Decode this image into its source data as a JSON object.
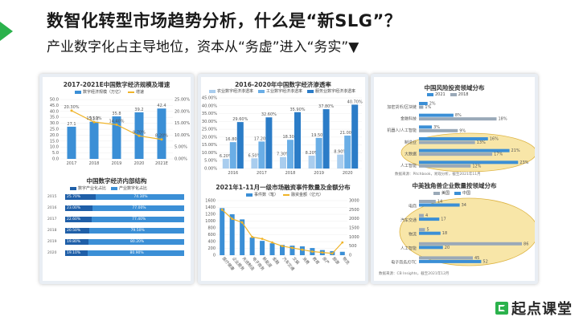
{
  "header": {
    "title": "数智化转型市场趋势分析，什么是“新SLG”？",
    "subtitle": "产业数字化占主导地位，资本从“务虚”进入“务实”▼"
  },
  "brand": {
    "logo_text": "起点课堂"
  },
  "colors": {
    "accent_green": "#2bb24c",
    "bar_blue": "#3b8fd6",
    "bar_light": "#a9cdee",
    "line_gold": "#f0b429",
    "bar_grey": "#9aa9b8",
    "dark_blue": "#1f5fa8",
    "ellipse_fill": "#f7e29a"
  },
  "chart_data": [
    {
      "type": "bar",
      "title": "2017-2021E中国数字经济规模及增速",
      "legend": [
        "数字经济规模（万亿）",
        "增速"
      ],
      "categories": [
        "2017",
        "2018",
        "2019",
        "2020",
        "2021E"
      ],
      "series": [
        {
          "name": "数字经济规模（万亿）",
          "values": [
            27.1,
            31.3,
            35.8,
            39.2,
            42.4
          ]
        },
        {
          "name": "增速",
          "values": [
            20.3,
            15.5,
            14.4,
            9.7,
            8.2
          ]
        }
      ],
      "labels": {
        "bars": [
          "27.1",
          "31.3",
          "35.8",
          "39.2",
          "42.4"
        ],
        "line": [
          "20.30%",
          "15.50%",
          "14.40%",
          "9.70%",
          "8.20%"
        ]
      },
      "ylim": [
        0,
        50
      ],
      "yticks": [
        "0.0",
        "5.0",
        "10.0",
        "15.0",
        "20.0",
        "25.0",
        "30.0",
        "35.0",
        "40.0",
        "45.0",
        "50.0"
      ],
      "y2ticks": [
        "0.00%",
        "5.00%",
        "10.00%",
        "15.00%",
        "20.00%",
        "25.00%"
      ]
    },
    {
      "type": "table",
      "title": "中国数字经济内部结构",
      "legend": [
        "数字产业化占比",
        "产业数字化占比"
      ],
      "rows": [
        {
          "year": "2015",
          "a": "25.70%",
          "b": "74.30%"
        },
        {
          "year": "2016",
          "a": "23.00%",
          "b": "77.00%"
        },
        {
          "year": "2017",
          "a": "22.60%",
          "b": "77.40%"
        },
        {
          "year": "2018",
          "a": "20.50%",
          "b": "79.50%"
        },
        {
          "year": "2019",
          "a": "19.80%",
          "b": "80.20%"
        },
        {
          "year": "2020",
          "a": "19.10%",
          "b": "80.90%"
        }
      ]
    },
    {
      "type": "bar",
      "title": "2016-2020年中国数字经济渗透率",
      "legend": [
        "农业数字经济渗透率",
        "工业数字经济渗透率",
        "服务业数字经济渗透率"
      ],
      "categories": [
        "2016",
        "2017",
        "2018",
        "2019",
        "2020"
      ],
      "series": [
        {
          "name": "农业数字经济渗透率",
          "values": [
            6.2,
            6.5,
            7.3,
            8.2,
            8.9
          ]
        },
        {
          "name": "工业数字经济渗透率",
          "values": [
            16.8,
            17.2,
            18.3,
            19.5,
            21.0
          ]
        },
        {
          "name": "服务业数字经济渗透率",
          "values": [
            29.6,
            32.6,
            35.9,
            37.8,
            40.7
          ]
        }
      ],
      "labels": [
        [
          "6.20%",
          "6.50%",
          "7.30%",
          "8.20%",
          "8.90%"
        ],
        [
          "16.80%",
          "17.20%",
          "18.30%",
          "19.50%",
          "21.00%"
        ],
        [
          "29.60%",
          "32.60%",
          "35.90%",
          "37.80%",
          "40.70%"
        ]
      ],
      "ylim": [
        0,
        45
      ],
      "yticks": [
        "0.00%",
        "5.00%",
        "10.00%",
        "15.00%",
        "20.00%",
        "25.00%",
        "30.00%",
        "35.00%",
        "40.00%",
        "45.00%"
      ]
    },
    {
      "type": "bar",
      "title": "2021年1-11月一级市场融资事件数量及金额分布",
      "legend": [
        "事件数（笔）",
        "融资金额（亿元）"
      ],
      "categories": [
        "医疗健康",
        "企业服务",
        "先进制造",
        "电子商务",
        "新能源",
        "金融",
        "汽车交通",
        "文娱",
        "消费",
        "教育",
        "房产",
        "旅游",
        "物流"
      ],
      "series": [
        {
          "name": "事件数（笔）",
          "values": [
            1380,
            1200,
            1050,
            520,
            420,
            350,
            300,
            280,
            260,
            210,
            150,
            120,
            100
          ]
        },
        {
          "name": "融资金额（亿元）",
          "values": [
            2500,
            2000,
            1800,
            1000,
            900,
            700,
            500,
            400,
            300,
            200,
            150,
            100,
            700
          ]
        }
      ],
      "ylim": [
        0,
        1600
      ],
      "y2lim": [
        0,
        3000
      ],
      "yticks": [
        "0",
        "200",
        "400",
        "600",
        "800",
        "1000",
        "1200",
        "1400",
        "1600"
      ],
      "y2ticks": [
        "0",
        "500",
        "1000",
        "1500",
        "2000",
        "2500",
        "3000"
      ]
    },
    {
      "type": "bar",
      "title": "中国风险投资领域分布",
      "legend": [
        "2021",
        "2018"
      ],
      "categories": [
        "加密货币/区块链",
        "金融科技",
        "机器人/人工智能",
        "制造业",
        "大数据",
        "人工智能"
      ],
      "series": [
        {
          "name": "2021",
          "values": [
            2,
            8,
            3,
            16,
            21,
            23
          ]
        },
        {
          "name": "2018",
          "values": [
            1,
            18,
            9,
            13,
            17,
            12
          ]
        }
      ],
      "labels": [
        [
          "2%",
          "8%",
          "3%",
          "16%",
          "21%",
          "23%"
        ],
        [
          "1%",
          "18%",
          "9%",
          "13%",
          "17%",
          "12%"
        ]
      ],
      "source": "数据来源：Pitchbook，易观分析，截至2021年11月"
    },
    {
      "type": "bar",
      "title": "中美独角兽企业数量按领域分布",
      "legend": [
        "美国",
        "中国"
      ],
      "categories": [
        "电商",
        "汽车交通",
        "物流",
        "人工智能",
        "电子商务/DTC"
      ],
      "series": [
        {
          "name": "美国",
          "values": [
            14,
            4,
            5,
            86,
            45
          ]
        },
        {
          "name": "中国",
          "values": [
            34,
            17,
            18,
            20,
            52
          ]
        }
      ],
      "labels": [
        [
          "14",
          "4",
          "5",
          "86",
          "45"
        ],
        [
          "34",
          "17",
          "18",
          "20",
          "52"
        ]
      ],
      "source": "数据来源：CB Insights，截至2021年12月"
    }
  ]
}
